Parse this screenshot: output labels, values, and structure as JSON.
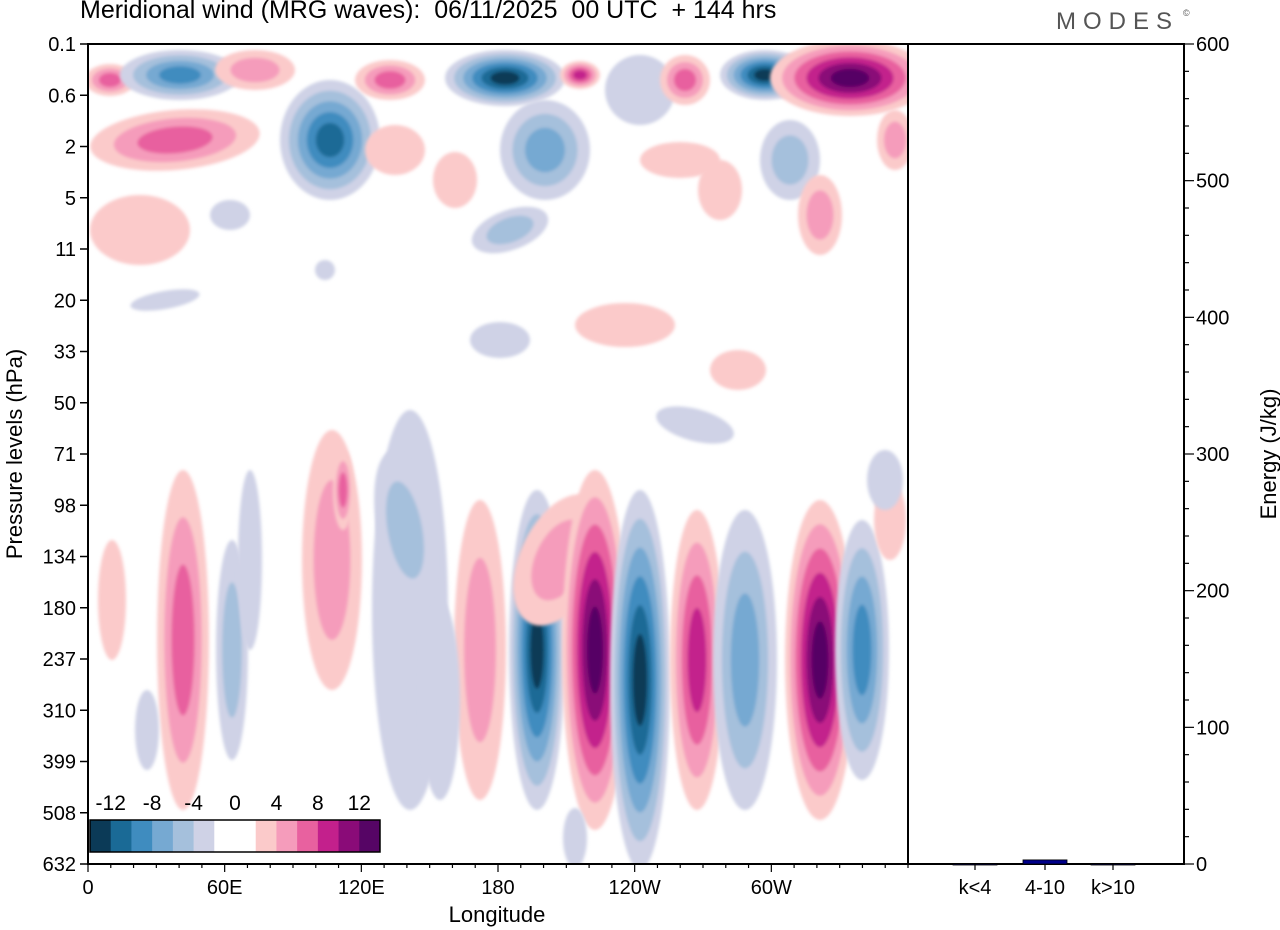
{
  "header": {
    "title": "Meridional wind (MRG waves):  06/11/2025  00 UTC  + 144 hrs",
    "brand": "MODES",
    "brand_mark": "©"
  },
  "chart_data": [
    {
      "type": "heatmap",
      "title": "Meridional wind (MRG waves):  06/11/2025  00 UTC  + 144 hrs",
      "xlabel": "Longitude",
      "ylabel": "Pressure levels (hPa)",
      "x_ticks": [
        "0",
        "60E",
        "120E",
        "180",
        "120W",
        "60W"
      ],
      "x_tick_values": [
        0,
        60,
        120,
        180,
        240,
        300
      ],
      "x_range": [
        0,
        360
      ],
      "y_levels": [
        "0.1",
        "0.6",
        "2",
        "5",
        "11",
        "20",
        "33",
        "50",
        "71",
        "98",
        "134",
        "180",
        "237",
        "310",
        "399",
        "508",
        "632"
      ],
      "colorbar": {
        "labels": [
          "-12",
          "-8",
          "-4",
          "0",
          "4",
          "8",
          "12"
        ],
        "colors": [
          "#0b3a57",
          "#1a6a96",
          "#3f8cbf",
          "#76a9d2",
          "#a5c0dc",
          "#cfd2e6",
          "#ffffff",
          "#ffffff",
          "#fbcaca",
          "#f59cbb",
          "#e8619f",
          "#c3208c",
          "#8a0b78",
          "#560565"
        ]
      },
      "features": [
        {
          "lon": 190,
          "level": "180",
          "sign": "negative",
          "magnitude": 14
        },
        {
          "lon": 206,
          "level": "180",
          "sign": "positive",
          "magnitude": 14
        },
        {
          "lon": 232,
          "level": "237",
          "sign": "negative",
          "magnitude": 14
        },
        {
          "lon": 250,
          "level": "237",
          "sign": "positive",
          "magnitude": 10
        },
        {
          "lon": 320,
          "level": "237",
          "sign": "positive",
          "magnitude": 14
        },
        {
          "lon": 337,
          "level": "237",
          "sign": "negative",
          "magnitude": 10
        },
        {
          "lon": 340,
          "level": "0.6",
          "sign": "positive",
          "magnitude": 14
        },
        {
          "lon": 185,
          "level": "0.6",
          "sign": "negative",
          "magnitude": 14
        },
        {
          "lon": 30,
          "level": "0.6",
          "sign": "negative",
          "magnitude": 10
        }
      ]
    },
    {
      "type": "bar",
      "categories": [
        "k<4",
        "4-10",
        "k>10"
      ],
      "values": [
        0,
        3,
        0
      ],
      "ylabel": "Energy (J/kg)",
      "ylim": [
        0,
        600
      ],
      "y_ticks": [
        "0",
        "100",
        "200",
        "300",
        "400",
        "500",
        "600"
      ],
      "bar_color": "#00008b"
    }
  ]
}
